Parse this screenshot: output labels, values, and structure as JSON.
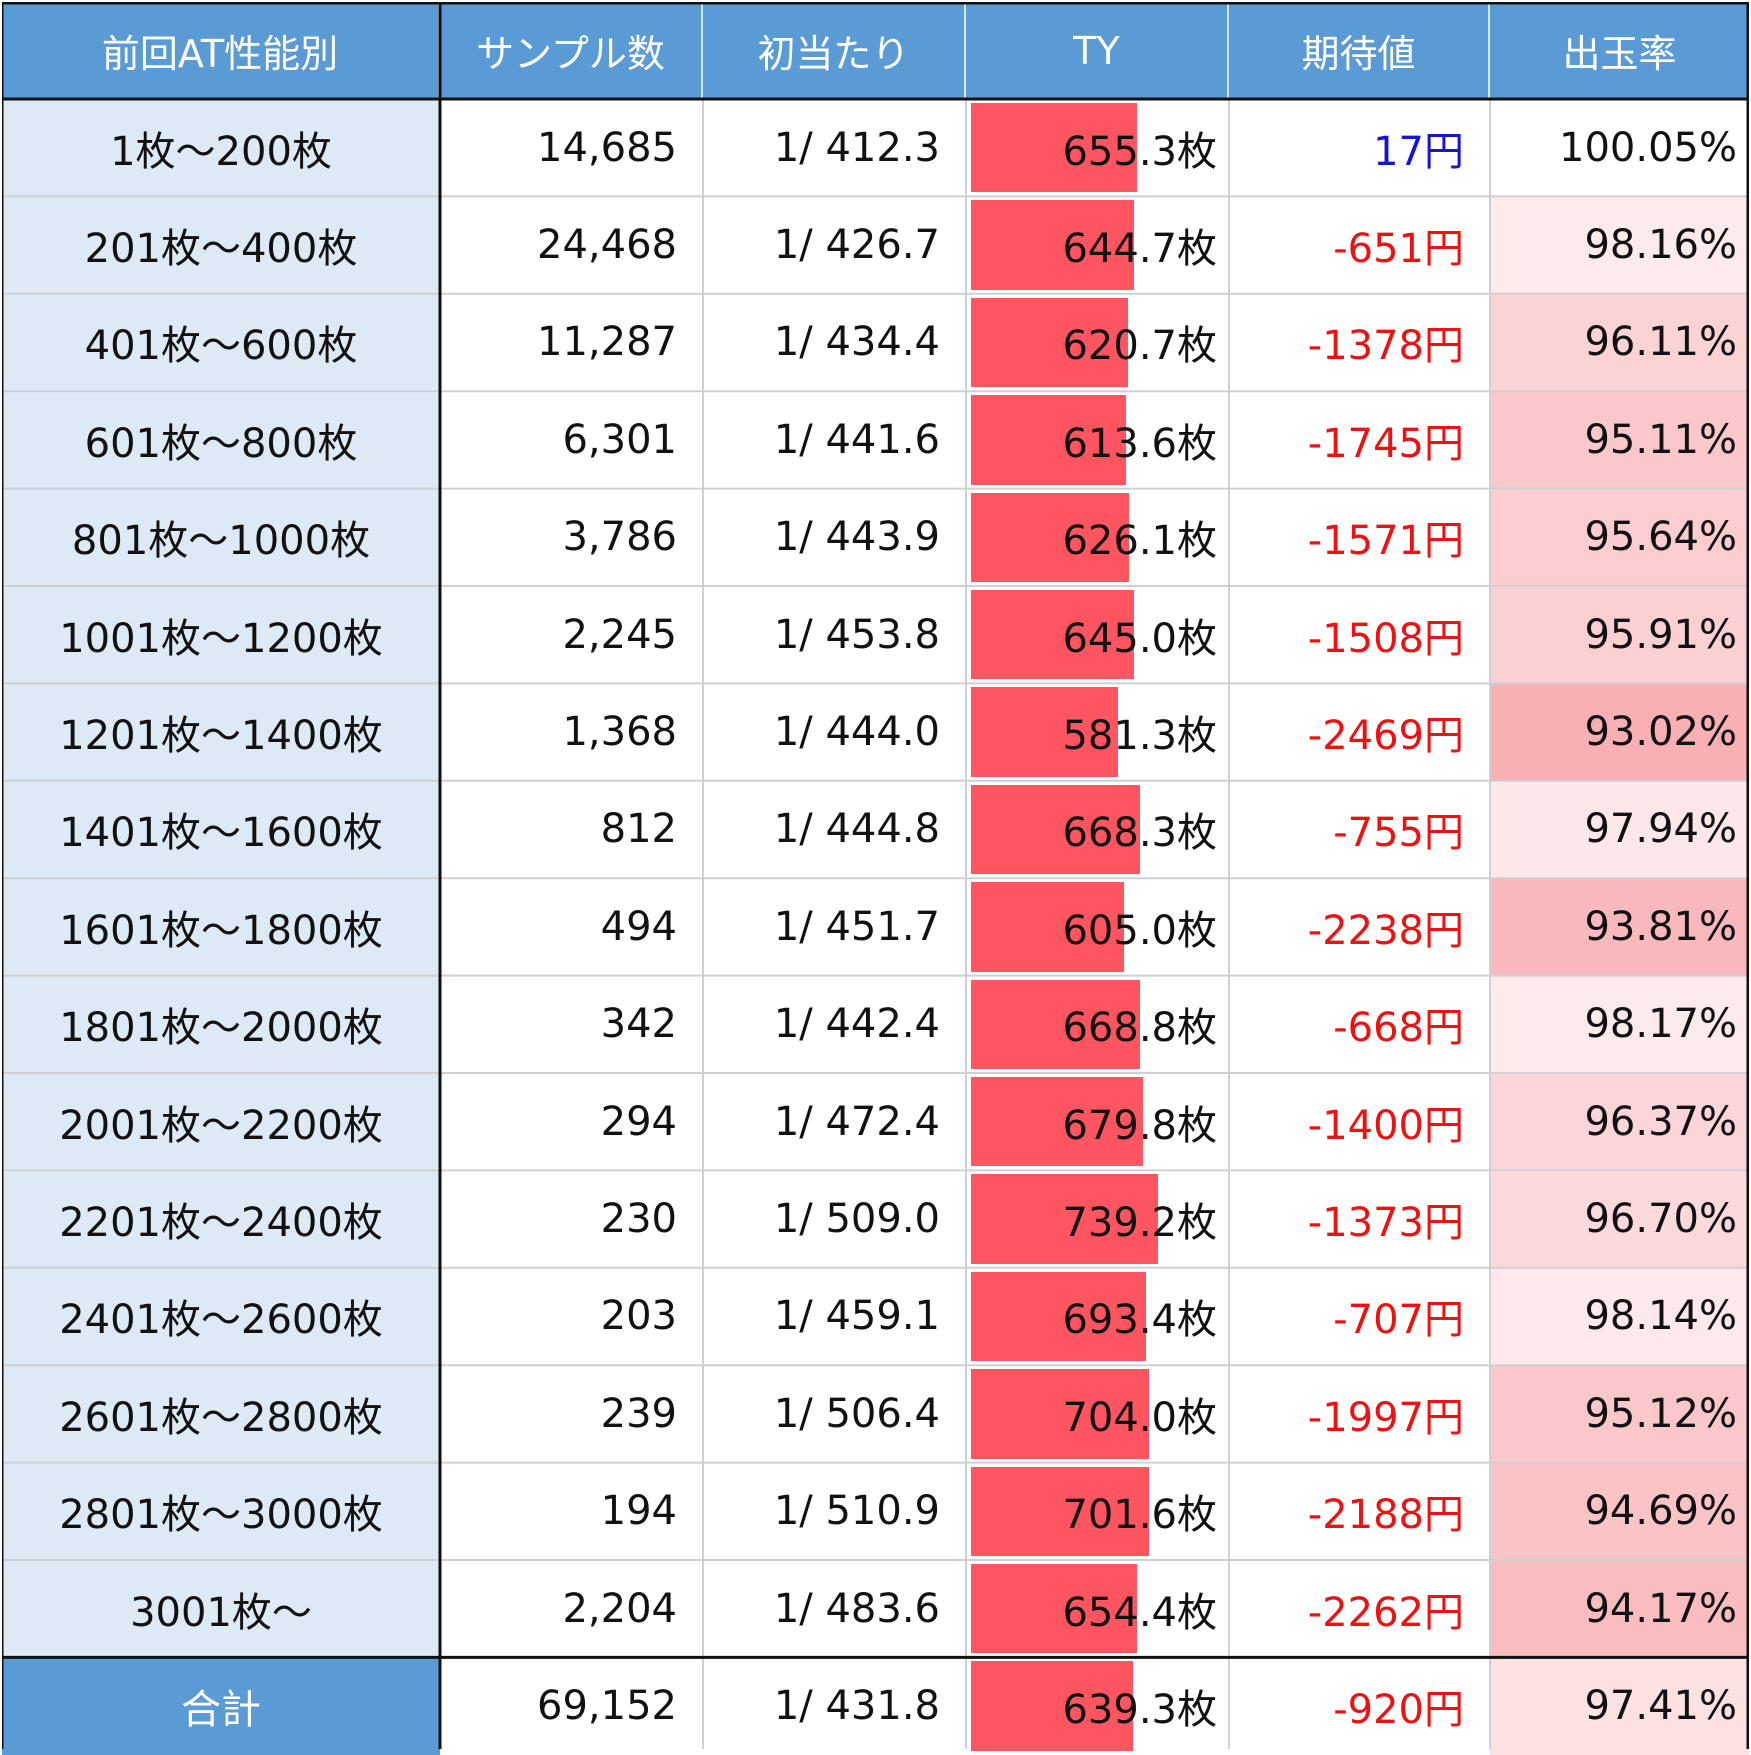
{
  "chart_data": {
    "type": "table",
    "columns": [
      "前回AT性能別",
      "サンプル数",
      "初当たり",
      "TY",
      "期待値",
      "出玉率"
    ],
    "rows": [
      {
        "range": "1枚～200枚",
        "samples": "14,685",
        "first_hit": "1/ 412.3",
        "ty": "655.3枚",
        "ty_value": 655.3,
        "ev": "17円",
        "ev_value": 17,
        "payout": "100.05%",
        "payout_value": 100.05
      },
      {
        "range": "201枚～400枚",
        "samples": "24,468",
        "first_hit": "1/ 426.7",
        "ty": "644.7枚",
        "ty_value": 644.7,
        "ev": "-651円",
        "ev_value": -651,
        "payout": "98.16%",
        "payout_value": 98.16
      },
      {
        "range": "401枚～600枚",
        "samples": "11,287",
        "first_hit": "1/ 434.4",
        "ty": "620.7枚",
        "ty_value": 620.7,
        "ev": "-1378円",
        "ev_value": -1378,
        "payout": "96.11%",
        "payout_value": 96.11
      },
      {
        "range": "601枚～800枚",
        "samples": "6,301",
        "first_hit": "1/ 441.6",
        "ty": "613.6枚",
        "ty_value": 613.6,
        "ev": "-1745円",
        "ev_value": -1745,
        "payout": "95.11%",
        "payout_value": 95.11
      },
      {
        "range": "801枚～1000枚",
        "samples": "3,786",
        "first_hit": "1/ 443.9",
        "ty": "626.1枚",
        "ty_value": 626.1,
        "ev": "-1571円",
        "ev_value": -1571,
        "payout": "95.64%",
        "payout_value": 95.64
      },
      {
        "range": "1001枚～1200枚",
        "samples": "2,245",
        "first_hit": "1/ 453.8",
        "ty": "645.0枚",
        "ty_value": 645.0,
        "ev": "-1508円",
        "ev_value": -1508,
        "payout": "95.91%",
        "payout_value": 95.91
      },
      {
        "range": "1201枚～1400枚",
        "samples": "1,368",
        "first_hit": "1/ 444.0",
        "ty": "581.3枚",
        "ty_value": 581.3,
        "ev": "-2469円",
        "ev_value": -2469,
        "payout": "93.02%",
        "payout_value": 93.02
      },
      {
        "range": "1401枚～1600枚",
        "samples": "812",
        "first_hit": "1/ 444.8",
        "ty": "668.3枚",
        "ty_value": 668.3,
        "ev": "-755円",
        "ev_value": -755,
        "payout": "97.94%",
        "payout_value": 97.94
      },
      {
        "range": "1601枚～1800枚",
        "samples": "494",
        "first_hit": "1/ 451.7",
        "ty": "605.0枚",
        "ty_value": 605.0,
        "ev": "-2238円",
        "ev_value": -2238,
        "payout": "93.81%",
        "payout_value": 93.81
      },
      {
        "range": "1801枚～2000枚",
        "samples": "342",
        "first_hit": "1/ 442.4",
        "ty": "668.8枚",
        "ty_value": 668.8,
        "ev": "-668円",
        "ev_value": -668,
        "payout": "98.17%",
        "payout_value": 98.17
      },
      {
        "range": "2001枚～2200枚",
        "samples": "294",
        "first_hit": "1/ 472.4",
        "ty": "679.8枚",
        "ty_value": 679.8,
        "ev": "-1400円",
        "ev_value": -1400,
        "payout": "96.37%",
        "payout_value": 96.37
      },
      {
        "range": "2201枚～2400枚",
        "samples": "230",
        "first_hit": "1/ 509.0",
        "ty": "739.2枚",
        "ty_value": 739.2,
        "ev": "-1373円",
        "ev_value": -1373,
        "payout": "96.70%",
        "payout_value": 96.7
      },
      {
        "range": "2401枚～2600枚",
        "samples": "203",
        "first_hit": "1/ 459.1",
        "ty": "693.4枚",
        "ty_value": 693.4,
        "ev": "-707円",
        "ev_value": -707,
        "payout": "98.14%",
        "payout_value": 98.14
      },
      {
        "range": "2601枚～2800枚",
        "samples": "239",
        "first_hit": "1/ 506.4",
        "ty": "704.0枚",
        "ty_value": 704.0,
        "ev": "-1997円",
        "ev_value": -1997,
        "payout": "95.12%",
        "payout_value": 95.12
      },
      {
        "range": "2801枚～3000枚",
        "samples": "194",
        "first_hit": "1/ 510.9",
        "ty": "701.6枚",
        "ty_value": 701.6,
        "ev": "-2188円",
        "ev_value": -2188,
        "payout": "94.69%",
        "payout_value": 94.69
      },
      {
        "range": "3001枚～",
        "samples": "2,204",
        "first_hit": "1/ 483.6",
        "ty": "654.4枚",
        "ty_value": 654.4,
        "ev": "-2262円",
        "ev_value": -2262,
        "payout": "94.17%",
        "payout_value": 94.17
      }
    ],
    "total": {
      "range": "合計",
      "samples": "69,152",
      "first_hit": "1/ 431.8",
      "ty": "639.3枚",
      "ty_value": 639.3,
      "ev": "-920円",
      "ev_value": -920,
      "payout": "97.41%",
      "payout_value": 97.41
    },
    "ty_bar_max": 1000,
    "colors": {
      "header_bg": "#5b9bd5",
      "label_bg": "#dde9f5",
      "ty_bar": "#ff5560",
      "ev_positive": "#1515d8",
      "ev_negative": "#ee1111",
      "payout_heat": "#f8b0b4"
    }
  }
}
